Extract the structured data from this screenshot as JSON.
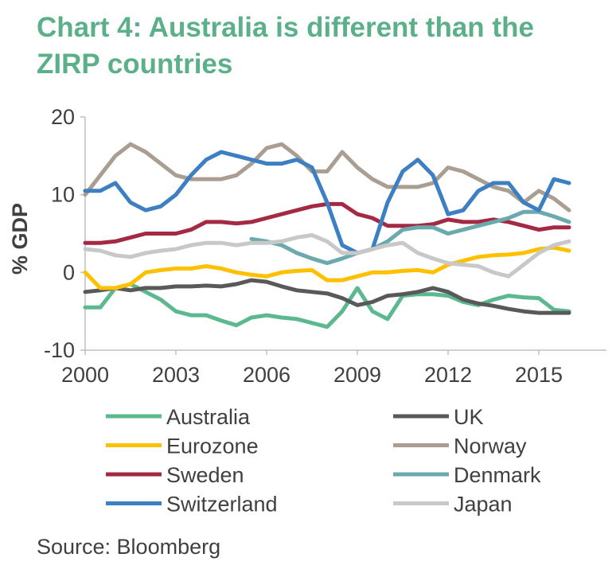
{
  "title_line1": "Chart 4: Australia is different than the",
  "title_line2": "ZIRP countries",
  "source": "Source: Bloomberg",
  "chart_data": {
    "type": "line",
    "title": "Chart 4: Australia is different than the ZIRP countries",
    "xlabel": "",
    "ylabel": "% GDP",
    "xlim": [
      2000,
      2016.1
    ],
    "ylim": [
      -10,
      20
    ],
    "xticks": [
      2000,
      2003,
      2006,
      2009,
      2012,
      2015
    ],
    "yticks": [
      -10,
      0,
      10,
      20
    ],
    "legend_position": "bottom",
    "series": [
      {
        "name": "Australia",
        "color": "#5cb98f",
        "points": [
          [
            2000,
            -4.5
          ],
          [
            2000.5,
            -4.5
          ],
          [
            2001,
            -2
          ],
          [
            2001.5,
            -1.5
          ],
          [
            2002,
            -2.5
          ],
          [
            2002.5,
            -3.5
          ],
          [
            2003,
            -5
          ],
          [
            2003.5,
            -5.5
          ],
          [
            2004,
            -5.5
          ],
          [
            2004.5,
            -6.2
          ],
          [
            2005,
            -6.8
          ],
          [
            2005.5,
            -5.8
          ],
          [
            2006,
            -5.5
          ],
          [
            2006.5,
            -5.8
          ],
          [
            2007,
            -6
          ],
          [
            2007.5,
            -6.5
          ],
          [
            2008,
            -7
          ],
          [
            2008.5,
            -5
          ],
          [
            2009,
            -2
          ],
          [
            2009.5,
            -5
          ],
          [
            2010,
            -6
          ],
          [
            2010.5,
            -3
          ],
          [
            2011,
            -2.8
          ],
          [
            2011.5,
            -2.8
          ],
          [
            2012,
            -3
          ],
          [
            2012.5,
            -3.8
          ],
          [
            2013,
            -4.2
          ],
          [
            2013.5,
            -3.5
          ],
          [
            2014,
            -3
          ],
          [
            2014.5,
            -3.2
          ],
          [
            2015,
            -3.3
          ],
          [
            2015.5,
            -4.8
          ],
          [
            2016,
            -5
          ]
        ]
      },
      {
        "name": "UK",
        "color": "#595959",
        "points": [
          [
            2000,
            -2.5
          ],
          [
            2000.5,
            -2.3
          ],
          [
            2001,
            -2
          ],
          [
            2001.5,
            -2.3
          ],
          [
            2002,
            -2
          ],
          [
            2002.5,
            -2
          ],
          [
            2003,
            -1.8
          ],
          [
            2003.5,
            -1.8
          ],
          [
            2004,
            -1.7
          ],
          [
            2004.5,
            -1.8
          ],
          [
            2005,
            -1.5
          ],
          [
            2005.5,
            -1
          ],
          [
            2006,
            -1.2
          ],
          [
            2006.5,
            -1.8
          ],
          [
            2007,
            -2.3
          ],
          [
            2007.5,
            -2.5
          ],
          [
            2008,
            -2.7
          ],
          [
            2008.5,
            -3.3
          ],
          [
            2009,
            -4.2
          ],
          [
            2009.5,
            -3.8
          ],
          [
            2010,
            -3
          ],
          [
            2010.5,
            -2.8
          ],
          [
            2011,
            -2.5
          ],
          [
            2011.5,
            -2
          ],
          [
            2012,
            -2.5
          ],
          [
            2012.5,
            -3.5
          ],
          [
            2013,
            -4
          ],
          [
            2013.5,
            -4.3
          ],
          [
            2014,
            -4.7
          ],
          [
            2014.5,
            -5
          ],
          [
            2015,
            -5.2
          ],
          [
            2015.5,
            -5.2
          ],
          [
            2016,
            -5.2
          ]
        ]
      },
      {
        "name": "Eurozone",
        "color": "#ffc000",
        "points": [
          [
            2000,
            0
          ],
          [
            2000.5,
            -2
          ],
          [
            2001,
            -2
          ],
          [
            2001.5,
            -1.5
          ],
          [
            2002,
            0
          ],
          [
            2002.5,
            0.3
          ],
          [
            2003,
            0.5
          ],
          [
            2003.5,
            0.5
          ],
          [
            2004,
            0.8
          ],
          [
            2004.5,
            0.5
          ],
          [
            2005,
            0
          ],
          [
            2005.5,
            -0.3
          ],
          [
            2006,
            -0.5
          ],
          [
            2006.5,
            0
          ],
          [
            2007,
            0.2
          ],
          [
            2007.5,
            0.3
          ],
          [
            2008,
            -1
          ],
          [
            2008.5,
            -1
          ],
          [
            2009,
            -0.5
          ],
          [
            2009.5,
            0
          ],
          [
            2010,
            0
          ],
          [
            2010.5,
            0.2
          ],
          [
            2011,
            0.3
          ],
          [
            2011.5,
            0
          ],
          [
            2012,
            1
          ],
          [
            2012.5,
            1.5
          ],
          [
            2013,
            2
          ],
          [
            2013.5,
            2.2
          ],
          [
            2014,
            2.3
          ],
          [
            2014.5,
            2.5
          ],
          [
            2015,
            3
          ],
          [
            2015.5,
            3.2
          ],
          [
            2016,
            2.8
          ]
        ]
      },
      {
        "name": "Norway",
        "color": "#aa9e92",
        "points": [
          [
            2000,
            10
          ],
          [
            2000.5,
            12.5
          ],
          [
            2001,
            15
          ],
          [
            2001.5,
            16.5
          ],
          [
            2002,
            15.5
          ],
          [
            2002.5,
            14
          ],
          [
            2003,
            12.5
          ],
          [
            2003.5,
            12
          ],
          [
            2004,
            12
          ],
          [
            2004.5,
            12
          ],
          [
            2005,
            12.5
          ],
          [
            2005.5,
            14
          ],
          [
            2006,
            16
          ],
          [
            2006.5,
            16.5
          ],
          [
            2007,
            15
          ],
          [
            2007.5,
            13
          ],
          [
            2008,
            13
          ],
          [
            2008.5,
            15.5
          ],
          [
            2009,
            13.5
          ],
          [
            2009.5,
            12
          ],
          [
            2010,
            11
          ],
          [
            2010.5,
            11
          ],
          [
            2011,
            11
          ],
          [
            2011.5,
            11.5
          ],
          [
            2012,
            13.5
          ],
          [
            2012.5,
            13
          ],
          [
            2013,
            12
          ],
          [
            2013.5,
            11
          ],
          [
            2014,
            10.5
          ],
          [
            2014.5,
            9
          ],
          [
            2015,
            10.5
          ],
          [
            2015.5,
            9.5
          ],
          [
            2016,
            8
          ]
        ]
      },
      {
        "name": "Sweden",
        "color": "#a42a44",
        "points": [
          [
            2000,
            3.8
          ],
          [
            2000.5,
            3.8
          ],
          [
            2001,
            4
          ],
          [
            2001.5,
            4.5
          ],
          [
            2002,
            5
          ],
          [
            2002.5,
            5
          ],
          [
            2003,
            5
          ],
          [
            2003.5,
            5.5
          ],
          [
            2004,
            6.5
          ],
          [
            2004.5,
            6.5
          ],
          [
            2005,
            6.3
          ],
          [
            2005.5,
            6.5
          ],
          [
            2006,
            7
          ],
          [
            2006.5,
            7.5
          ],
          [
            2007,
            8
          ],
          [
            2007.5,
            8.5
          ],
          [
            2008,
            8.8
          ],
          [
            2008.5,
            8.8
          ],
          [
            2009,
            7.5
          ],
          [
            2009.5,
            7
          ],
          [
            2010,
            6
          ],
          [
            2010.5,
            6
          ],
          [
            2011,
            6
          ],
          [
            2011.5,
            6.2
          ],
          [
            2012,
            6.8
          ],
          [
            2012.5,
            6.5
          ],
          [
            2013,
            6.5
          ],
          [
            2013.5,
            6.8
          ],
          [
            2014,
            6.5
          ],
          [
            2014.5,
            6
          ],
          [
            2015,
            5.5
          ],
          [
            2015.5,
            5.8
          ],
          [
            2016,
            5.8
          ]
        ]
      },
      {
        "name": "Denmark",
        "color": "#6aa9ad",
        "points": [
          [
            2005.5,
            4.3
          ],
          [
            2006,
            4
          ],
          [
            2006.5,
            3.5
          ],
          [
            2007,
            2.5
          ],
          [
            2007.5,
            1.8
          ],
          [
            2008,
            1.2
          ],
          [
            2008.5,
            1.8
          ],
          [
            2009,
            2.5
          ],
          [
            2009.5,
            3
          ],
          [
            2010,
            4
          ],
          [
            2010.5,
            5.5
          ],
          [
            2011,
            5.8
          ],
          [
            2011.5,
            5.8
          ],
          [
            2012,
            5
          ],
          [
            2012.5,
            5.5
          ],
          [
            2013,
            6
          ],
          [
            2013.5,
            6.5
          ],
          [
            2014,
            7
          ],
          [
            2014.5,
            7.8
          ],
          [
            2015,
            7.8
          ],
          [
            2015.5,
            7.2
          ],
          [
            2016,
            6.5
          ]
        ]
      },
      {
        "name": "Switzerland",
        "color": "#3c7fc2",
        "points": [
          [
            2000,
            10.5
          ],
          [
            2000.5,
            10.5
          ],
          [
            2001,
            11.5
          ],
          [
            2001.5,
            9
          ],
          [
            2002,
            8
          ],
          [
            2002.5,
            8.5
          ],
          [
            2003,
            10
          ],
          [
            2003.5,
            12.5
          ],
          [
            2004,
            14.5
          ],
          [
            2004.5,
            15.5
          ],
          [
            2005,
            15
          ],
          [
            2005.5,
            14.5
          ],
          [
            2006,
            14
          ],
          [
            2006.5,
            14
          ],
          [
            2007,
            14.5
          ],
          [
            2007.5,
            13.5
          ],
          [
            2008,
            9
          ],
          [
            2008.5,
            3.5
          ],
          [
            2009,
            2.5
          ],
          [
            2009.5,
            3
          ],
          [
            2010,
            9
          ],
          [
            2010.5,
            13
          ],
          [
            2011,
            14.5
          ],
          [
            2011.5,
            12.5
          ],
          [
            2012,
            7.5
          ],
          [
            2012.5,
            8
          ],
          [
            2013,
            10.5
          ],
          [
            2013.5,
            11.5
          ],
          [
            2014,
            11.5
          ],
          [
            2014.5,
            9
          ],
          [
            2015,
            8
          ],
          [
            2015.5,
            12
          ],
          [
            2016,
            11.5
          ]
        ]
      },
      {
        "name": "Japan",
        "color": "#c8c8c8",
        "points": [
          [
            2000,
            3
          ],
          [
            2000.5,
            2.8
          ],
          [
            2001,
            2.2
          ],
          [
            2001.5,
            2
          ],
          [
            2002,
            2.5
          ],
          [
            2002.5,
            2.8
          ],
          [
            2003,
            3
          ],
          [
            2003.5,
            3.5
          ],
          [
            2004,
            3.8
          ],
          [
            2004.5,
            3.8
          ],
          [
            2005,
            3.5
          ],
          [
            2005.5,
            3.8
          ],
          [
            2006,
            3.8
          ],
          [
            2006.5,
            4
          ],
          [
            2007,
            4.5
          ],
          [
            2007.5,
            4.8
          ],
          [
            2008,
            4
          ],
          [
            2008.5,
            2.5
          ],
          [
            2009,
            2.5
          ],
          [
            2009.5,
            3
          ],
          [
            2010,
            3.5
          ],
          [
            2010.5,
            3.8
          ],
          [
            2011,
            2.5
          ],
          [
            2011.5,
            1.8
          ],
          [
            2012,
            1.2
          ],
          [
            2012.5,
            1
          ],
          [
            2013,
            0.8
          ],
          [
            2013.5,
            0
          ],
          [
            2014,
            -0.5
          ],
          [
            2014.5,
            1
          ],
          [
            2015,
            2.5
          ],
          [
            2015.5,
            3.5
          ],
          [
            2016,
            4
          ]
        ]
      }
    ]
  }
}
